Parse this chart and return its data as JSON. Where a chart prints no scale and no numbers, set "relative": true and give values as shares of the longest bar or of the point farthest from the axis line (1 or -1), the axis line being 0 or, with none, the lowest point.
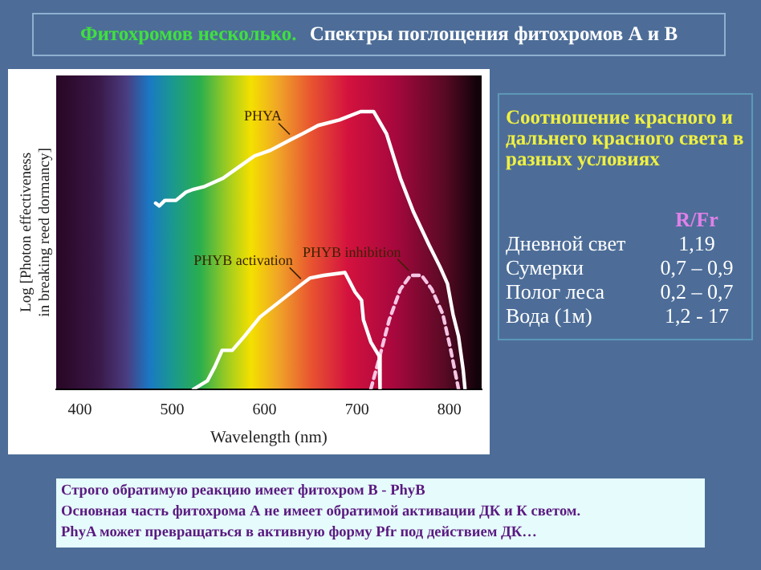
{
  "chart_data": {
    "type": "line",
    "title": "Фитохромов несколько.",
    "subtitle": "Спектры поглощения фитохромов А и В",
    "xlabel": "Wavelength (nm)",
    "ylabel": "Log [Photon effectiveness in breaking reed dormancy]",
    "relative": true,
    "xlim": [
      374,
      835
    ],
    "xticks": [
      400,
      500,
      600,
      700,
      800
    ],
    "grid": false,
    "legend": false,
    "marker": "none",
    "series": [
      {
        "name": "PHYA",
        "color": "#ffffff",
        "x": [
          482,
          486,
          492,
          504,
          515,
          523,
          535,
          555,
          572,
          589,
          606,
          629,
          641,
          658,
          681,
          704,
          718,
          732,
          747,
          761,
          778,
          790,
          798,
          804,
          810,
          815,
          817
        ],
        "values": [
          0.67,
          0.66,
          0.68,
          0.68,
          0.71,
          0.72,
          0.73,
          0.76,
          0.8,
          0.84,
          0.86,
          0.9,
          0.92,
          0.95,
          0.97,
          1,
          1,
          0.92,
          0.76,
          0.64,
          0.52,
          0.44,
          0.38,
          0.27,
          0.19,
          0.07,
          0
        ]
      },
      {
        "name": "PHYB activation",
        "color": "#ffffff",
        "x": [
          523,
          538,
          546,
          554,
          565,
          578,
          595,
          618,
          641,
          649,
          664,
          687,
          698,
          705,
          707,
          715,
          724,
          725
        ],
        "values": [
          0,
          0.03,
          0.08,
          0.14,
          0.14,
          0.19,
          0.26,
          0.32,
          0.38,
          0.4,
          0.41,
          0.42,
          0.35,
          0.32,
          0.25,
          0.17,
          0.12,
          0
        ]
      },
      {
        "name": "PHYB inhibition",
        "color": "#f4c6e4",
        "line_style": "dashed",
        "x": [
          715,
          724,
          735,
          747,
          758,
          770,
          781,
          793,
          801,
          807,
          810
        ],
        "values": [
          0,
          0.11,
          0.25,
          0.36,
          0.41,
          0.41,
          0.36,
          0.27,
          0.15,
          0.05,
          0
        ]
      }
    ],
    "annotations": [
      "Соотношение красного и дальнего красного света в разных условиях",
      "R/Fr",
      "Дневной свет",
      "1,19",
      "Сумерки",
      "0,7 – 0,9",
      "Полог леса",
      "0,2 – 0,7",
      "Вода (1м)",
      "1,2 - 17",
      "Строго обратимую реакцию имеет фитохром В - PhyB",
      "Основная часть фитохрома А не имеет обратимой активации ДК  и К светом.",
      "PhyA может превращаться в активную форму Pfr под действием ДК…"
    ]
  }
}
